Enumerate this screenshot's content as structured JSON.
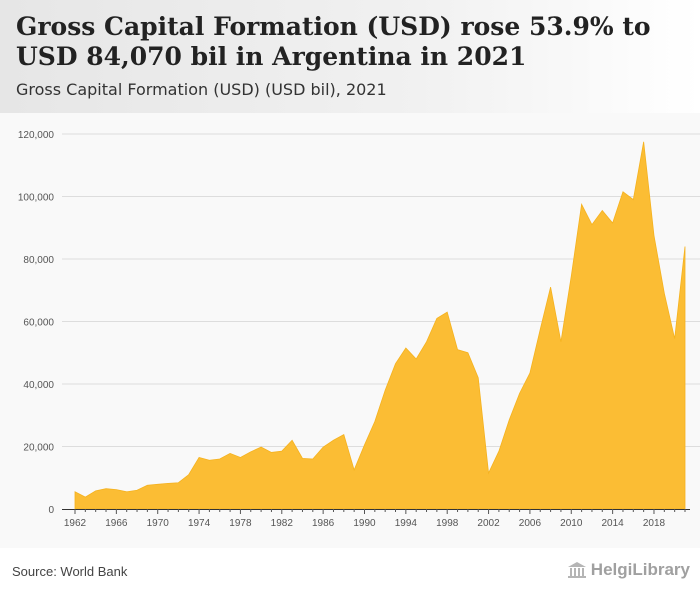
{
  "header": {
    "title": "Gross Capital Formation (USD) rose 53.9% to USD 84,070 bil in Argentina in 2021",
    "subtitle": "Gross Capital Formation (USD) (USD bil), 2021"
  },
  "footer": {
    "source": "Source: World Bank",
    "logo_text": "HelgiLibrary"
  },
  "colors": {
    "area": "#fbbd34",
    "grid": "#dddddd",
    "axis_text": "#555555"
  },
  "chart_data": {
    "type": "area",
    "title": "Gross Capital Formation (USD) rose 53.9% to USD 84,070 bil in Argentina in 2021",
    "subtitle": "Gross Capital Formation (USD) (USD bil), 2021",
    "xlabel": "",
    "ylabel": "",
    "ylim": [
      0,
      120000
    ],
    "xlim": [
      1962,
      2021
    ],
    "grid": true,
    "yticks": [
      0,
      20000,
      40000,
      60000,
      80000,
      100000,
      120000
    ],
    "ytick_labels": [
      "0",
      "20,000",
      "40,000",
      "60,000",
      "80,000",
      "100,000",
      "120,000"
    ],
    "xticks": [
      1962,
      1966,
      1970,
      1974,
      1978,
      1982,
      1986,
      1990,
      1994,
      1998,
      2002,
      2006,
      2010,
      2014,
      2018
    ],
    "xtick_labels": [
      "1962",
      "1966",
      "1970",
      "1974",
      "1978",
      "1982",
      "1986",
      "1990",
      "1994",
      "1998",
      "2002",
      "2006",
      "2010",
      "2014",
      "2018"
    ],
    "series": [
      {
        "x": [
          1962,
          1963,
          1964,
          1965,
          1966,
          1967,
          1968,
          1969,
          1970,
          1971,
          1972,
          1973,
          1974,
          1975,
          1976,
          1977,
          1978,
          1979,
          1980,
          1981,
          1982,
          1983,
          1984,
          1985,
          1986,
          1987,
          1988,
          1989,
          1990,
          1991,
          1992,
          1993,
          1994,
          1995,
          1996,
          1997,
          1998,
          1999,
          2000,
          2001,
          2002,
          2003,
          2004,
          2005,
          2006,
          2007,
          2008,
          2009,
          2010,
          2011,
          2012,
          2013,
          2014,
          2015,
          2016,
          2017,
          2018,
          2019,
          2020,
          2021
        ],
        "values": [
          5500,
          3800,
          5800,
          6500,
          6200,
          5500,
          6000,
          7600,
          7900,
          8200,
          8400,
          11000,
          16500,
          15600,
          16000,
          17800,
          16500,
          18300,
          19800,
          18100,
          18500,
          22000,
          16200,
          16000,
          19800,
          22000,
          23800,
          12500,
          20500,
          28000,
          38000,
          46500,
          51500,
          48000,
          53500,
          61000,
          63000,
          51000,
          50000,
          42000,
          11500,
          18500,
          28500,
          37000,
          43500,
          57500,
          71000,
          53500,
          74500,
          97500,
          91000,
          95500,
          91500,
          101500,
          99000,
          117500,
          87500,
          69000,
          54500,
          84000
        ]
      }
    ]
  }
}
